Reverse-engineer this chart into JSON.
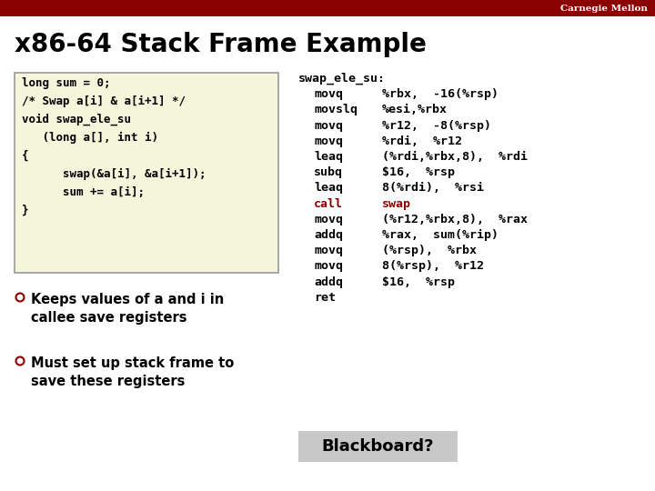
{
  "bg_color": "#ffffff",
  "header_color": "#8B0000",
  "header_text": "Carnegie Mellon",
  "header_text_color": "#ffffff",
  "title": "x86-64 Stack Frame Example",
  "title_color": "#000000",
  "code_box_bg": "#f5f5dc",
  "code_box_border": "#999999",
  "code_lines": [
    "long sum = 0;",
    "/* Swap a[i] & a[i+1] */",
    "void swap_ele_su",
    "   (long a[], int i)",
    "{",
    "      swap(&a[i], &a[i+1]);",
    "      sum += a[i];",
    "}"
  ],
  "bullet_color": "#8B0000",
  "bullets": [
    [
      "Keeps values of ",
      "a",
      " and ",
      "i",
      " in",
      "callee save registers"
    ],
    [
      "Must set up stack frame to",
      "save these registers"
    ]
  ],
  "asm_label": "swap_ele_su:",
  "asm_lines": [
    {
      "mnem": "movq",
      "args": "%rbx,  -16(%rsp)",
      "color": "#000000"
    },
    {
      "mnem": "movslq",
      "args": "%esi,%rbx",
      "color": "#000000"
    },
    {
      "mnem": "movq",
      "args": "%r12,  -8(%rsp)",
      "color": "#000000"
    },
    {
      "mnem": "movq",
      "args": "%rdi,  %r12",
      "color": "#000000"
    },
    {
      "mnem": "leaq",
      "args": "(%rdi,%rbx,8),  %rdi",
      "color": "#000000"
    },
    {
      "mnem": "subq",
      "args": "$16,  %rsp",
      "color": "#000000"
    },
    {
      "mnem": "leaq",
      "args": "8(%rdi),  %rsi",
      "color": "#000000"
    },
    {
      "mnem": "call",
      "args": "swap",
      "color": "#8B0000"
    },
    {
      "mnem": "movq",
      "args": "(%r12,%rbx,8),  %rax",
      "color": "#000000"
    },
    {
      "mnem": "addq",
      "args": "%rax,  sum(%rip)",
      "color": "#000000"
    },
    {
      "mnem": "movq",
      "args": "(%rsp),  %rbx",
      "color": "#000000"
    },
    {
      "mnem": "movq",
      "args": "8(%rsp),  %r12",
      "color": "#000000"
    },
    {
      "mnem": "addq",
      "args": "$16,  %rsp",
      "color": "#000000"
    },
    {
      "mnem": "ret",
      "args": "",
      "color": "#000000"
    }
  ],
  "blackboard_text": "Blackboard?",
  "blackboard_bg": "#c8c8c8"
}
